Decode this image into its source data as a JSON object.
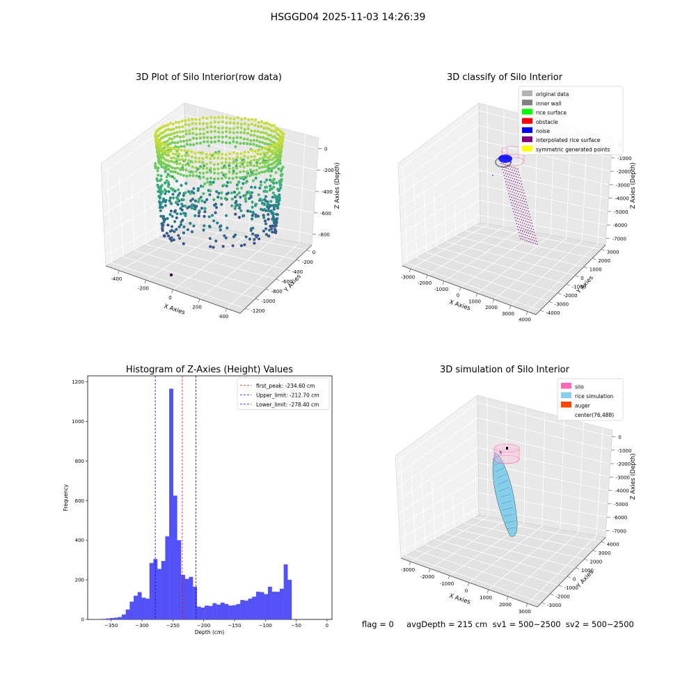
{
  "suptitle": "HSGGD04 2025-11-03 14:26:39",
  "status_line": "flag = 0     avgDepth = 215 cm  sv1 = 500~2500  sv2 = 500~2500",
  "chart_data": [
    {
      "type": "scatter",
      "title": "3D Plot of Silo Interior(row data)",
      "xlabel": "X Axies",
      "ylabel": "Y Axies",
      "zlabel": "Z Axies (Depth)",
      "x_ticks": [
        "-400",
        "-200",
        "0",
        "200",
        "400"
      ],
      "y_ticks": [
        "-1200",
        "-1000",
        "-800",
        "-600",
        "-400",
        "-200",
        "0"
      ],
      "z_ticks": [
        "-800",
        "-600",
        "-400",
        "-200",
        "0"
      ],
      "colormap": [
        "#440154",
        "#3b528b",
        "#21918c",
        "#5ec962",
        "#fde725"
      ]
    },
    {
      "type": "scatter",
      "title": "3D classify of Silo Interior",
      "xlabel": "X Axies",
      "ylabel": "Y Axies",
      "zlabel": "Z Axies (Depth)",
      "x_ticks": [
        "-3000",
        "-2000",
        "-1000",
        "0",
        "1000",
        "2000",
        "3000",
        "4000"
      ],
      "y_ticks": [
        "-4000",
        "-3000",
        "-2000",
        "-1000",
        "0",
        "1000",
        "2000",
        "3000"
      ],
      "z_ticks": [
        "-7000",
        "-6000",
        "-5000",
        "-4000",
        "-3000",
        "-2000",
        "-1000",
        "0"
      ],
      "legend_position": "top-right",
      "legend": [
        {
          "label": "original data",
          "color": "#b3b3b3"
        },
        {
          "label": "inner wall",
          "color": "#808080"
        },
        {
          "label": "rice surface",
          "color": "#00ff00"
        },
        {
          "label": "obstacle",
          "color": "#ff0000"
        },
        {
          "label": "noise",
          "color": "#0000ff"
        },
        {
          "label": "interpolated rice surface",
          "color": "#800080"
        },
        {
          "label": "symmetric generated points",
          "color": "#ffff00"
        }
      ]
    },
    {
      "type": "bar",
      "title": "Histogram of Z-Axies (Height) Values",
      "xlabel": "Depth (cm)",
      "ylabel": "Frequency",
      "xlim": [
        -388,
        8
      ],
      "ylim": [
        0,
        1230
      ],
      "x_ticks": [
        -350,
        -300,
        -250,
        -200,
        -150,
        -100,
        -50,
        0
      ],
      "y_ticks": [
        0,
        200,
        400,
        600,
        800,
        1000,
        1200
      ],
      "bar_color": "#5252f7",
      "bin_start": -377.5,
      "bin_width": 6.4,
      "values": [
        2,
        0,
        3,
        5,
        7,
        9,
        12,
        25,
        50,
        90,
        120,
        138,
        110,
        105,
        285,
        305,
        255,
        295,
        420,
        1165,
        625,
        400,
        225,
        205,
        215,
        165,
        65,
        60,
        70,
        68,
        82,
        75,
        85,
        78,
        70,
        72,
        78,
        98,
        95,
        105,
        115,
        140,
        138,
        128,
        165,
        140,
        140,
        155,
        278,
        200
      ],
      "vlines": [
        {
          "label": "first_peak: -234.60 cm",
          "value": -234.6,
          "color": "#ff0000"
        },
        {
          "label": "Upper_limit: -212.70 cm",
          "value": -212.7,
          "color": "#0000ff"
        },
        {
          "label": "Lower_limit: -278.40 cm",
          "value": -278.4,
          "color": "#0000ff"
        }
      ],
      "legend_position": "top-right"
    },
    {
      "type": "scatter",
      "title": "3D simulation of Silo Interior",
      "xlabel": "X Axies",
      "ylabel": "Y Axies",
      "zlabel": "Z Axies (Depth)",
      "x_ticks": [
        "-3000",
        "-2000",
        "-1000",
        "0",
        "1000",
        "2000",
        "3000"
      ],
      "y_ticks": [
        "-3000",
        "-2000",
        "-1000",
        "0",
        "1000",
        "2000",
        "3000",
        "4000"
      ],
      "z_ticks": [
        "-7000",
        "-6000",
        "-5000",
        "-4000",
        "-3000",
        "-2000",
        "-1000",
        "0"
      ],
      "legend_position": "top-right",
      "legend": [
        {
          "label": "silo",
          "color": "#ff69b4"
        },
        {
          "label": "rice simulation",
          "color": "#87ceeb"
        },
        {
          "label": "auger",
          "color": "#ff4500"
        },
        {
          "label": "center(76,488)",
          "color": ""
        }
      ]
    }
  ]
}
